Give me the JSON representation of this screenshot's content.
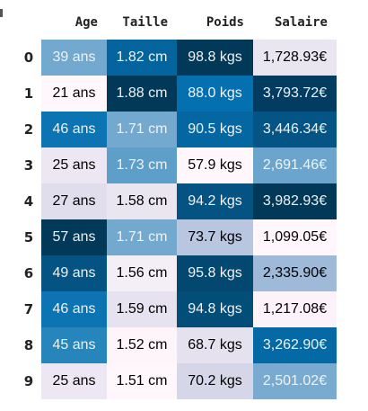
{
  "columns": [
    "Age",
    "Taille",
    "Poids",
    "Salaire"
  ],
  "index": [
    "0",
    "1",
    "2",
    "3",
    "4",
    "5",
    "6",
    "7",
    "8",
    "9"
  ],
  "rows": [
    [
      "39 ans",
      "1.82 cm",
      "98.8 kgs",
      "1,728.93€"
    ],
    [
      "21 ans",
      "1.88 cm",
      "88.0 kgs",
      "3,793.72€"
    ],
    [
      "46 ans",
      "1.71 cm",
      "90.5 kgs",
      "3,446.34€"
    ],
    [
      "25 ans",
      "1.73 cm",
      "57.9 kgs",
      "2,691.46€"
    ],
    [
      "27 ans",
      "1.58 cm",
      "94.2 kgs",
      "3,982.93€"
    ],
    [
      "57 ans",
      "1.71 cm",
      "73.7 kgs",
      "1,099.05€"
    ],
    [
      "49 ans",
      "1.56 cm",
      "95.8 kgs",
      "2,335.90€"
    ],
    [
      "46 ans",
      "1.59 cm",
      "94.8 kgs",
      "1,217.08€"
    ],
    [
      "45 ans",
      "1.52 cm",
      "68.7 kgs",
      "3,262.90€"
    ],
    [
      "25 ans",
      "1.51 cm",
      "70.2 kgs",
      "2,501.02€"
    ]
  ],
  "colors": {
    "header_text": "#222222",
    "light_text": "#000000",
    "dark_text": "#f1f1f1"
  },
  "cell_styles": [
    [
      {
        "bg": "#74a9cf",
        "dark": true
      },
      {
        "bg": "#04649e",
        "dark": true
      },
      {
        "bg": "#023858",
        "dark": true
      },
      {
        "bg": "#eae6f1",
        "dark": false
      }
    ],
    [
      {
        "bg": "#fff7fb",
        "dark": false
      },
      {
        "bg": "#023858",
        "dark": true
      },
      {
        "bg": "#0570b0",
        "dark": true
      },
      {
        "bg": "#023c61",
        "dark": true
      }
    ],
    [
      {
        "bg": "#0c74b2",
        "dark": true
      },
      {
        "bg": "#73a9cf",
        "dark": true
      },
      {
        "bg": "#0567a2",
        "dark": true
      },
      {
        "bg": "#045585",
        "dark": true
      }
    ],
    [
      {
        "bg": "#ece7f2",
        "dark": false
      },
      {
        "bg": "#5d9fc9",
        "dark": true
      },
      {
        "bg": "#fff7fb",
        "dark": false
      },
      {
        "bg": "#6ba5cd",
        "dark": true
      }
    ],
    [
      {
        "bg": "#e0dded",
        "dark": false
      },
      {
        "bg": "#e9e5f1",
        "dark": false
      },
      {
        "bg": "#045382",
        "dark": true
      },
      {
        "bg": "#023858",
        "dark": true
      }
    ],
    [
      {
        "bg": "#023858",
        "dark": true
      },
      {
        "bg": "#73a9cf",
        "dark": true
      },
      {
        "bg": "#b8c6e0",
        "dark": false
      },
      {
        "bg": "#fff7fb",
        "dark": false
      }
    ],
    [
      {
        "bg": "#045382",
        "dark": true
      },
      {
        "bg": "#f4eef6",
        "dark": false
      },
      {
        "bg": "#034870",
        "dark": true
      },
      {
        "bg": "#9fbad9",
        "dark": false
      }
    ],
    [
      {
        "bg": "#0c74b2",
        "dark": true
      },
      {
        "bg": "#e6e2ef",
        "dark": false
      },
      {
        "bg": "#034d79",
        "dark": true
      },
      {
        "bg": "#fbf3f9",
        "dark": false
      }
    ],
    [
      {
        "bg": "#2685bb",
        "dark": true
      },
      {
        "bg": "#fdf5fa",
        "dark": false
      },
      {
        "bg": "#e5e1ef",
        "dark": false
      },
      {
        "bg": "#0569a5",
        "dark": true
      }
    ],
    [
      {
        "bg": "#ece7f2",
        "dark": false
      },
      {
        "bg": "#fff7fb",
        "dark": false
      },
      {
        "bg": "#d6d6e9",
        "dark": false
      },
      {
        "bg": "#79abd0",
        "dark": true
      }
    ]
  ]
}
